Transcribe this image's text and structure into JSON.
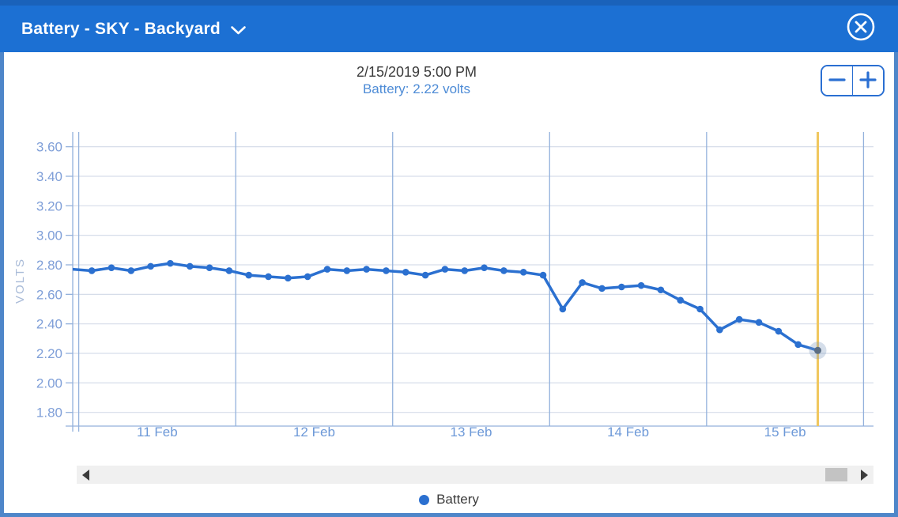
{
  "window": {
    "title": "Battery - SKY - Backyard"
  },
  "tooltip": {
    "date": "2/15/2019 5:00 PM",
    "value_label": "Battery: 2.22 volts"
  },
  "zoom_controls": {
    "minus_icon": "minus",
    "plus_icon": "plus"
  },
  "legend": {
    "label": "Battery"
  },
  "colors": {
    "header": "#1c70d3",
    "header_top_edge": "#1a62ba",
    "window_border": "#4e86c9",
    "accent_blue": "#2a6fd2",
    "line": "#2b70d0",
    "grid_horizontal": "#d6dde9",
    "grid_vertical": "#93b1dc",
    "axis_text_y": "#7f9fd8",
    "axis_text_x": "#6d99d8",
    "axis_title": "#a9bbd8",
    "cursor_line": "#f0c75e",
    "selected_halo": "rgba(125,152,190,0.32)",
    "selected_dot": "#5c6e84",
    "scroll_track": "#f0f0f0",
    "scroll_thumb": "#c3c3c3"
  },
  "chart_data": {
    "type": "line",
    "title": "",
    "xlabel": "",
    "ylabel": "VOLTS",
    "x_unit": "hours_after_11_feb_midnight",
    "x_axis": {
      "day_labels": [
        "11 Feb",
        "12 Feb",
        "13 Feb",
        "14 Feb",
        "15 Feb"
      ],
      "day_label_hours": [
        12,
        36,
        60,
        84,
        108
      ],
      "gridline_hours": [
        0,
        24,
        48,
        72,
        96,
        120
      ],
      "domain_hours": [
        -0.92,
        121.5
      ]
    },
    "y_axis": {
      "label": "VOLTS",
      "tick_labels": [
        "3.60",
        "3.40",
        "3.20",
        "3.00",
        "2.80",
        "2.60",
        "2.40",
        "2.20",
        "2.00",
        "1.80"
      ],
      "tick_values": [
        3.6,
        3.4,
        3.2,
        3.0,
        2.8,
        2.6,
        2.4,
        2.2,
        2.0,
        1.8
      ],
      "range": [
        1.71,
        3.7
      ],
      "grid": true
    },
    "series": [
      {
        "name": "Battery",
        "color": "#2b70d0",
        "lead_in_point": [
          -1,
          2.77
        ],
        "points": [
          [
            2,
            2.76
          ],
          [
            5,
            2.78
          ],
          [
            8,
            2.76
          ],
          [
            11,
            2.79
          ],
          [
            14,
            2.81
          ],
          [
            17,
            2.79
          ],
          [
            20,
            2.78
          ],
          [
            23,
            2.76
          ],
          [
            26,
            2.73
          ],
          [
            29,
            2.72
          ],
          [
            32,
            2.71
          ],
          [
            35,
            2.72
          ],
          [
            38,
            2.77
          ],
          [
            41,
            2.76
          ],
          [
            44,
            2.77
          ],
          [
            47,
            2.76
          ],
          [
            50,
            2.75
          ],
          [
            53,
            2.73
          ],
          [
            56,
            2.77
          ],
          [
            59,
            2.76
          ],
          [
            62,
            2.78
          ],
          [
            65,
            2.76
          ],
          [
            68,
            2.75
          ],
          [
            71,
            2.73
          ],
          [
            74,
            2.5
          ],
          [
            77,
            2.68
          ],
          [
            80,
            2.64
          ],
          [
            83,
            2.65
          ],
          [
            86,
            2.66
          ],
          [
            89,
            2.63
          ],
          [
            92,
            2.56
          ],
          [
            95,
            2.5
          ],
          [
            98,
            2.36
          ],
          [
            101,
            2.43
          ],
          [
            104,
            2.41
          ],
          [
            107,
            2.35
          ],
          [
            110,
            2.26
          ],
          [
            113,
            2.22
          ]
        ]
      }
    ],
    "cursor": {
      "hour": 113,
      "volts": 2.22,
      "date_label": "2/15/2019 5:00 PM",
      "value_label": "Battery: 2.22 volts"
    },
    "legend_position": "bottom"
  }
}
